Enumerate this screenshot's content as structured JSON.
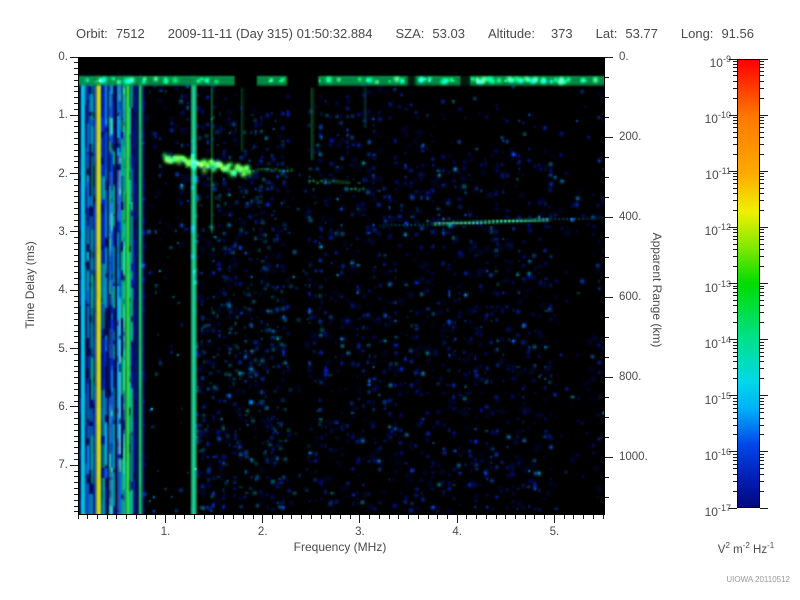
{
  "header": {
    "orbit_label": "Orbit:",
    "orbit": "7512",
    "datetime": "2009-11-11 (Day 315) 01:50:32.884",
    "sza_label": "SZA:",
    "sza": "53.03",
    "altitude_label": "Altitude:",
    "altitude": "373",
    "lat_label": "Lat:",
    "lat": "53.77",
    "long_label": "Long:",
    "long": "91.56"
  },
  "watermark": "UIOWA 20110512",
  "chart_data": {
    "type": "heatmap",
    "x_axis": {
      "label": "Frequency (MHz)",
      "min": 0.1,
      "max": 5.5,
      "major_ticks": [
        1,
        2,
        3,
        4,
        5
      ],
      "minor_step": 0.1,
      "tick_suffix": "."
    },
    "y_axis_left": {
      "label": "Time Delay (ms)",
      "min": 0,
      "max": 7.82,
      "direction": "down",
      "major_ticks": [
        0,
        1,
        2,
        3,
        4,
        5,
        6,
        7
      ],
      "minor_step": 0.1,
      "tick_suffix": "."
    },
    "y_axis_right": {
      "label": "Apparent Range (km)",
      "min": 0,
      "max": 1140,
      "major_ticks": [
        0,
        200,
        400,
        600,
        800,
        1000
      ],
      "minor_step": 50,
      "tick_suffix": "."
    },
    "colorbar": {
      "scale": "log",
      "tick_exponents": [
        -9,
        -10,
        -11,
        -12,
        -13,
        -14,
        -15,
        -16,
        -17
      ],
      "unit_parts": [
        [
          "V",
          "2"
        ],
        [
          "m",
          "-2"
        ],
        [
          "Hz",
          "-1"
        ]
      ],
      "gradient": [
        [
          0,
          "#ff0000"
        ],
        [
          0.125,
          "#ff7800"
        ],
        [
          0.25,
          "#ffa800"
        ],
        [
          0.34,
          "#f0f000"
        ],
        [
          0.42,
          "#80e800"
        ],
        [
          0.5,
          "#00dc00"
        ],
        [
          0.625,
          "#00e08c"
        ],
        [
          0.72,
          "#00d8e8"
        ],
        [
          0.78,
          "#00b0f8"
        ],
        [
          0.86,
          "#0048e8"
        ],
        [
          0.94,
          "#001cb0"
        ],
        [
          1,
          "#000a7c"
        ]
      ]
    },
    "features": {
      "transmit_pulse": {
        "t_range": [
          0.3,
          0.47
        ],
        "base_color": "#009048",
        "blob_colors": [
          "#00e060",
          "#30ff90",
          "#00ffd0",
          "#a0ffa0"
        ],
        "gaps_f": [
          [
            1.7,
            1.93,
            1
          ],
          [
            2.24,
            2.56,
            1
          ],
          [
            3.48,
            3.56,
            0.8
          ],
          [
            4.02,
            4.12,
            0.8
          ]
        ],
        "bright_f": [
          3.62,
          4.55,
          4.65,
          4.78,
          5.28
        ]
      },
      "rfi_stripes": {
        "f_range": [
          0.1,
          0.78
        ],
        "count": 52,
        "colors": [
          [
            "#0030dd",
            0.32
          ],
          [
            "#00b8e8",
            0.22
          ],
          [
            "#00e070",
            0.16
          ],
          [
            "#0048ff",
            0.18
          ],
          [
            "#40ffb0",
            0.06
          ],
          [
            "#90e8ff",
            0.06
          ]
        ],
        "named": [
          {
            "f": 0.14,
            "color": "#00d0e0",
            "w": 2.0
          },
          {
            "f": 0.3,
            "color": "#d8e800",
            "w": 2.4
          },
          {
            "f": 0.6,
            "color": "#30e830",
            "w": 2.0
          },
          {
            "f": 0.73,
            "color": "#20d060",
            "w": 1.6
          },
          {
            "f": 1.28,
            "color": "#20e8a0",
            "w": 2.4
          }
        ]
      },
      "ionosphere_echo": {
        "f_range": [
          0.98,
          1.85
        ],
        "t_start": 1.72,
        "t_end": 1.95,
        "colors": [
          "#44e838",
          "#70f040",
          "#20c060"
        ],
        "peak": {
          "f": 1.36,
          "t": 1.83,
          "color": "#f4f400"
        },
        "tail_segments": [
          [
            1.85,
            2.33,
            1.93
          ],
          [
            2.47,
            2.9,
            2.12
          ],
          [
            2.9,
            3.02,
            2.25
          ]
        ],
        "tail_color": "#30d855"
      },
      "surface_echo": {
        "f_range": [
          3.2,
          5.5
        ],
        "t_start": 2.88,
        "t_end": 2.74,
        "bright_f": [
          3.75,
          4.95
        ],
        "bright_color": "#30e8a0",
        "core_color": "#90ffd0",
        "dim_color": "#00b8e8"
      },
      "vertical_lines": [
        {
          "f": 1.47,
          "t": [
            0.5,
            3.0
          ],
          "color": "#28d060",
          "alpha": 0.55
        },
        {
          "f": 1.78,
          "t": [
            0.5,
            1.6
          ],
          "color": "#28c878",
          "alpha": 0.4
        },
        {
          "f": 2.5,
          "t": [
            0.5,
            1.75
          ],
          "color": "#30d070",
          "alpha": 0.55
        },
        {
          "f": 3.04,
          "t": [
            0.5,
            1.2
          ],
          "color": "#20b8d0",
          "alpha": 0.35
        }
      ],
      "dark_zones": [
        {
          "f": [
            0.8,
            1.3
          ],
          "t": [
            3.0,
            7.82
          ],
          "keep": 0.1
        },
        {
          "f": [
            2.26,
            2.44
          ],
          "t": [
            0.45,
            7.82
          ],
          "keep": 0.15
        },
        {
          "f": [
            3.6,
            5.5
          ],
          "t": [
            0.5,
            1.55
          ],
          "keep": 0.3
        },
        {
          "f": [
            1.35,
            5.5
          ],
          "t": [
            0.45,
            0.9
          ],
          "keep": 0.35
        },
        {
          "f": [
            5.0,
            5.5
          ],
          "t": [
            0.3,
            7.82
          ],
          "keep": 0.5
        },
        {
          "f": [
            5.05,
            5.35
          ],
          "t": [
            3.1,
            7.82
          ],
          "keep": 0.35
        }
      ],
      "sparse_dots_zone_a": {
        "count": 24,
        "color": "#00c0e0"
      }
    },
    "noise": {
      "seed": 42,
      "speckle_count": 2400,
      "speckle_colors": [
        [
          "#000f9e",
          0.45
        ],
        [
          "#0031e8",
          0.3
        ],
        [
          "#0b66ff",
          0.13
        ],
        [
          "#17a4ff",
          0.09
        ],
        [
          "#00e0ff",
          0.03
        ]
      ],
      "dim_count": 800,
      "dim_colors": [
        "#0018c0",
        "#0030ff"
      ],
      "cyan_patch": {
        "f": [
          1.3,
          2.6
        ],
        "t": [
          0.9,
          7.8
        ],
        "count": 320,
        "colors": [
          "#0070ff",
          "#00b0ff",
          "#00e0ff"
        ]
      }
    }
  }
}
